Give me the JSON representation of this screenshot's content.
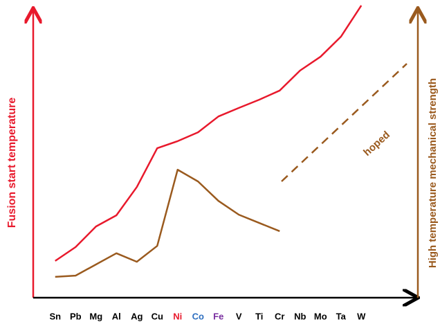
{
  "chart_data": {
    "type": "line",
    "y_label": "Fusion start temperature",
    "y2_label": "High temperature mechanical strength",
    "annotation": "hoped",
    "categories": [
      "Sn",
      "Pb",
      "Mg",
      "Al",
      "Ag",
      "Cu",
      "Ni",
      "Co",
      "Fe",
      "V",
      "Ti",
      "Cr",
      "Nb",
      "Mo",
      "Ta",
      "W"
    ],
    "category_colors": [
      "#000000",
      "#000000",
      "#000000",
      "#000000",
      "#000000",
      "#000000",
      "#e8192c",
      "#2e6fc0",
      "#7a2fa0",
      "#000000",
      "#000000",
      "#000000",
      "#000000",
      "#000000",
      "#000000",
      "#000000"
    ],
    "ylim": [
      0,
      100
    ],
    "series": [
      {
        "name": "Fusion start temperature",
        "color": "#e8192c",
        "values": [
          12.5,
          17.2,
          24.2,
          28,
          37.6,
          50.8,
          53.2,
          56.2,
          61.6,
          64.5,
          67.3,
          70.4,
          77.2,
          81.9,
          88.7,
          99.3
        ]
      },
      {
        "name": "High temperature mechanical strength",
        "color": "#9a5a1e",
        "values": [
          7.1,
          7.5,
          11.3,
          15.1,
          12.2,
          17.6,
          43.5,
          39.5,
          32.9,
          28.2,
          25.4,
          22.6,
          null,
          null,
          null,
          null
        ]
      }
    ]
  }
}
